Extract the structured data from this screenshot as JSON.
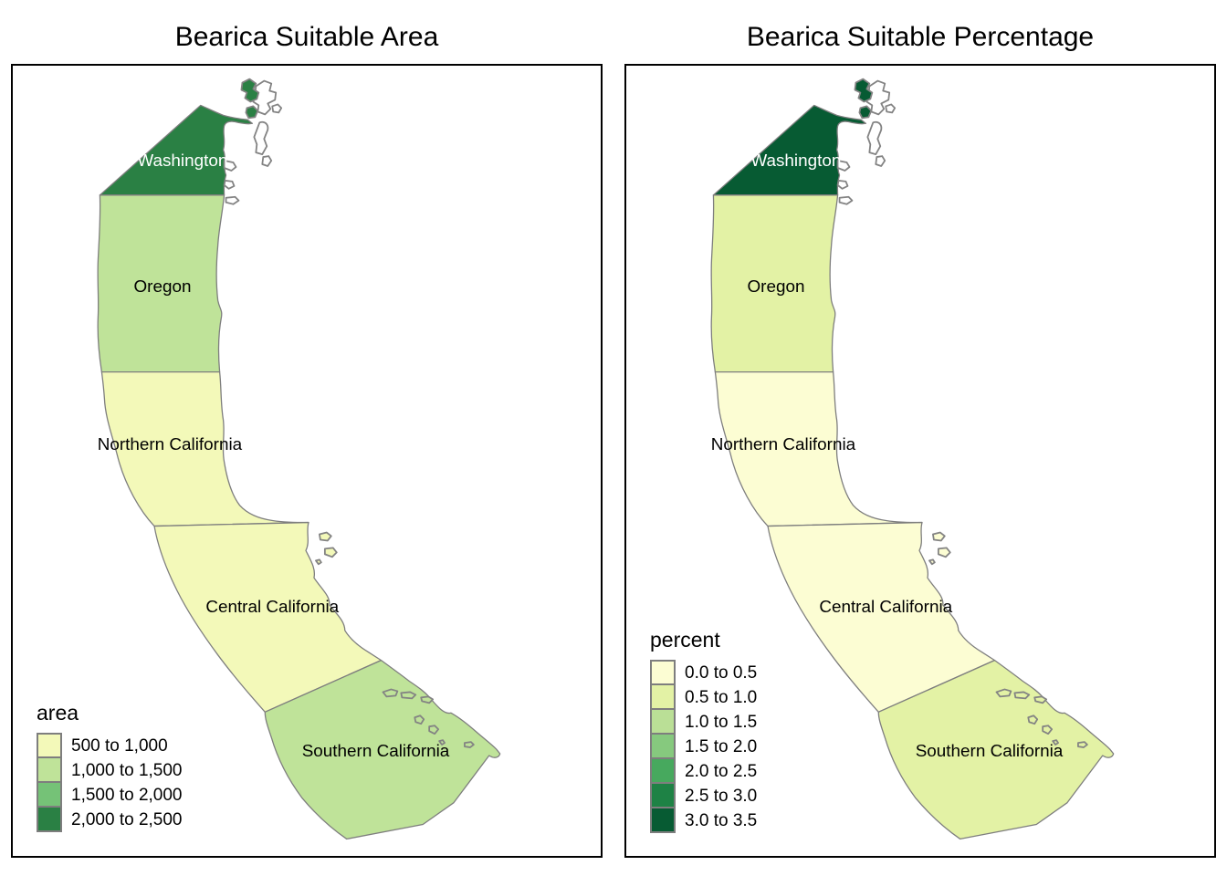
{
  "figure": {
    "background": "#ffffff",
    "coast_color": "#7e7e7e",
    "frame_color": "#000000"
  },
  "region_names": {
    "washington": "Washington",
    "oregon": "Oregon",
    "northern_california": "Northern California",
    "central_california": "Central California",
    "southern_california": "Southern California"
  },
  "region_label_colors": {
    "washington": "#ffffff",
    "oregon": "#000000",
    "northern_california": "#000000",
    "central_california": "#000000",
    "southern_california": "#000000"
  },
  "panels": [
    {
      "title": "Bearica Suitable Area",
      "legend": {
        "title": "area",
        "classes": [
          {
            "label": "500 to 1,000",
            "color": "#F3F9B9"
          },
          {
            "label": "1,000 to 1,500",
            "color": "#BFE399"
          },
          {
            "label": "1,500 to 2,000",
            "color": "#75C277"
          },
          {
            "label": "2,000 to 2,500",
            "color": "#2A8044"
          }
        ]
      },
      "region_fills": {
        "washington": "#2A8044",
        "oregon": "#BFE399",
        "northern_california": "#F3F9B9",
        "central_california": "#F3F9B9",
        "southern_california": "#BFE399"
      },
      "region_classes": {
        "washington": "2,000 to 2,500",
        "oregon": "1,000 to 1,500",
        "northern_california": "500 to 1,000",
        "central_california": "500 to 1,000",
        "southern_california": "1,000 to 1,500"
      }
    },
    {
      "title": "Bearica Suitable Percentage",
      "legend": {
        "title": "percent",
        "classes": [
          {
            "label": "0.0 to 0.5",
            "color": "#FCFDD3"
          },
          {
            "label": "0.5 to 1.0",
            "color": "#E3F2A5"
          },
          {
            "label": "1.0 to 1.5",
            "color": "#BADF96"
          },
          {
            "label": "1.5 to 2.0",
            "color": "#86C97E"
          },
          {
            "label": "2.0 to 2.5",
            "color": "#47A95E"
          },
          {
            "label": "2.5 to 3.0",
            "color": "#1E8245"
          },
          {
            "label": "3.0 to 3.5",
            "color": "#075B33"
          }
        ]
      },
      "region_fills": {
        "washington": "#075B33",
        "oregon": "#E3F2A5",
        "northern_california": "#FCFDD3",
        "central_california": "#FCFDD3",
        "southern_california": "#E3F2A5"
      },
      "region_classes": {
        "washington": "3.0 to 3.5",
        "oregon": "0.5 to 1.0",
        "northern_california": "0.0 to 0.5",
        "central_california": "0.0 to 0.5",
        "southern_california": "0.5 to 1.0"
      }
    }
  ]
}
